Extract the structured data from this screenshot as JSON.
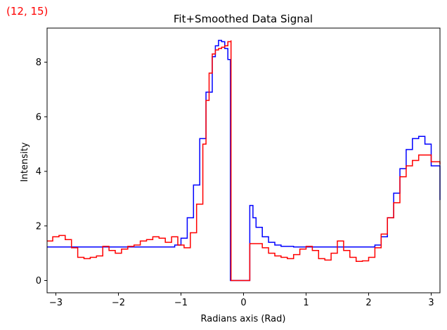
{
  "corner_label": "(12, 15)",
  "colors": {
    "fit": "#0000ff",
    "smoothed": "#ff0000",
    "corner_label": "#ff0000"
  },
  "chart_data": {
    "type": "line",
    "title": "Fit+Smoothed Data Signal",
    "xlabel": "Radians axis (Rad)",
    "ylabel": "Intensity",
    "xlim": [
      -3.14,
      3.14
    ],
    "ylim": [
      -0.45,
      9.25
    ],
    "xticks": [
      -3,
      -2,
      -1,
      0,
      1,
      2,
      3
    ],
    "xtick_labels": [
      "−3",
      "−2",
      "−1",
      "0",
      "1",
      "2",
      "3"
    ],
    "yticks": [
      0,
      2,
      4,
      6,
      8
    ],
    "ytick_labels": [
      "0",
      "2",
      "4",
      "6",
      "8"
    ],
    "grid": false,
    "step": true,
    "series": [
      {
        "color": "#0000ff",
        "x": [
          -3.14,
          -1.2,
          -1.1,
          -1.0,
          -0.9,
          -0.8,
          -0.7,
          -0.6,
          -0.5,
          -0.45,
          -0.4,
          -0.35,
          -0.3,
          -0.25,
          -0.21,
          -0.21,
          0.1,
          0.1,
          0.15,
          0.2,
          0.3,
          0.4,
          0.5,
          0.6,
          0.8,
          1.0,
          1.5,
          2.0,
          2.1,
          2.2,
          2.3,
          2.4,
          2.5,
          2.6,
          2.7,
          2.8,
          2.9,
          3.0,
          3.14
        ],
        "y": [
          1.23,
          1.23,
          1.3,
          1.55,
          2.3,
          3.5,
          5.2,
          6.9,
          8.2,
          8.6,
          8.8,
          8.75,
          8.5,
          8.1,
          7.9,
          0.0,
          0.0,
          2.75,
          2.3,
          1.95,
          1.6,
          1.4,
          1.3,
          1.25,
          1.23,
          1.23,
          1.23,
          1.23,
          1.3,
          1.6,
          2.3,
          3.2,
          4.1,
          4.8,
          5.2,
          5.28,
          5.0,
          4.2,
          2.95
        ]
      },
      {
        "color": "#ff0000",
        "x": [
          -3.14,
          -3.05,
          -2.95,
          -2.85,
          -2.75,
          -2.65,
          -2.55,
          -2.45,
          -2.35,
          -2.25,
          -2.15,
          -2.05,
          -1.95,
          -1.85,
          -1.75,
          -1.65,
          -1.55,
          -1.45,
          -1.35,
          -1.25,
          -1.15,
          -1.05,
          -0.95,
          -0.85,
          -0.75,
          -0.65,
          -0.6,
          -0.55,
          -0.5,
          -0.45,
          -0.4,
          -0.35,
          -0.3,
          -0.25,
          -0.2,
          -0.2,
          0.1,
          0.1,
          0.2,
          0.3,
          0.4,
          0.5,
          0.6,
          0.7,
          0.8,
          0.9,
          1.0,
          1.1,
          1.2,
          1.3,
          1.4,
          1.5,
          1.6,
          1.7,
          1.8,
          1.9,
          2.0,
          2.1,
          2.2,
          2.3,
          2.4,
          2.5,
          2.6,
          2.7,
          2.8,
          2.9,
          3.0,
          3.14
        ],
        "y": [
          1.45,
          1.6,
          1.65,
          1.5,
          1.2,
          0.85,
          0.8,
          0.85,
          0.9,
          1.25,
          1.1,
          1.0,
          1.15,
          1.25,
          1.3,
          1.45,
          1.5,
          1.6,
          1.55,
          1.4,
          1.6,
          1.3,
          1.2,
          1.75,
          2.8,
          5.0,
          6.6,
          7.6,
          8.3,
          8.45,
          8.5,
          8.55,
          8.6,
          8.75,
          8.8,
          0.0,
          0.0,
          1.35,
          1.35,
          1.2,
          1.0,
          0.9,
          0.85,
          0.8,
          0.95,
          1.15,
          1.25,
          1.1,
          0.8,
          0.75,
          1.0,
          1.45,
          1.1,
          0.85,
          0.7,
          0.72,
          0.85,
          1.2,
          1.7,
          2.3,
          2.85,
          3.8,
          4.2,
          4.4,
          4.6,
          4.6,
          4.35,
          4.25
        ]
      }
    ]
  }
}
